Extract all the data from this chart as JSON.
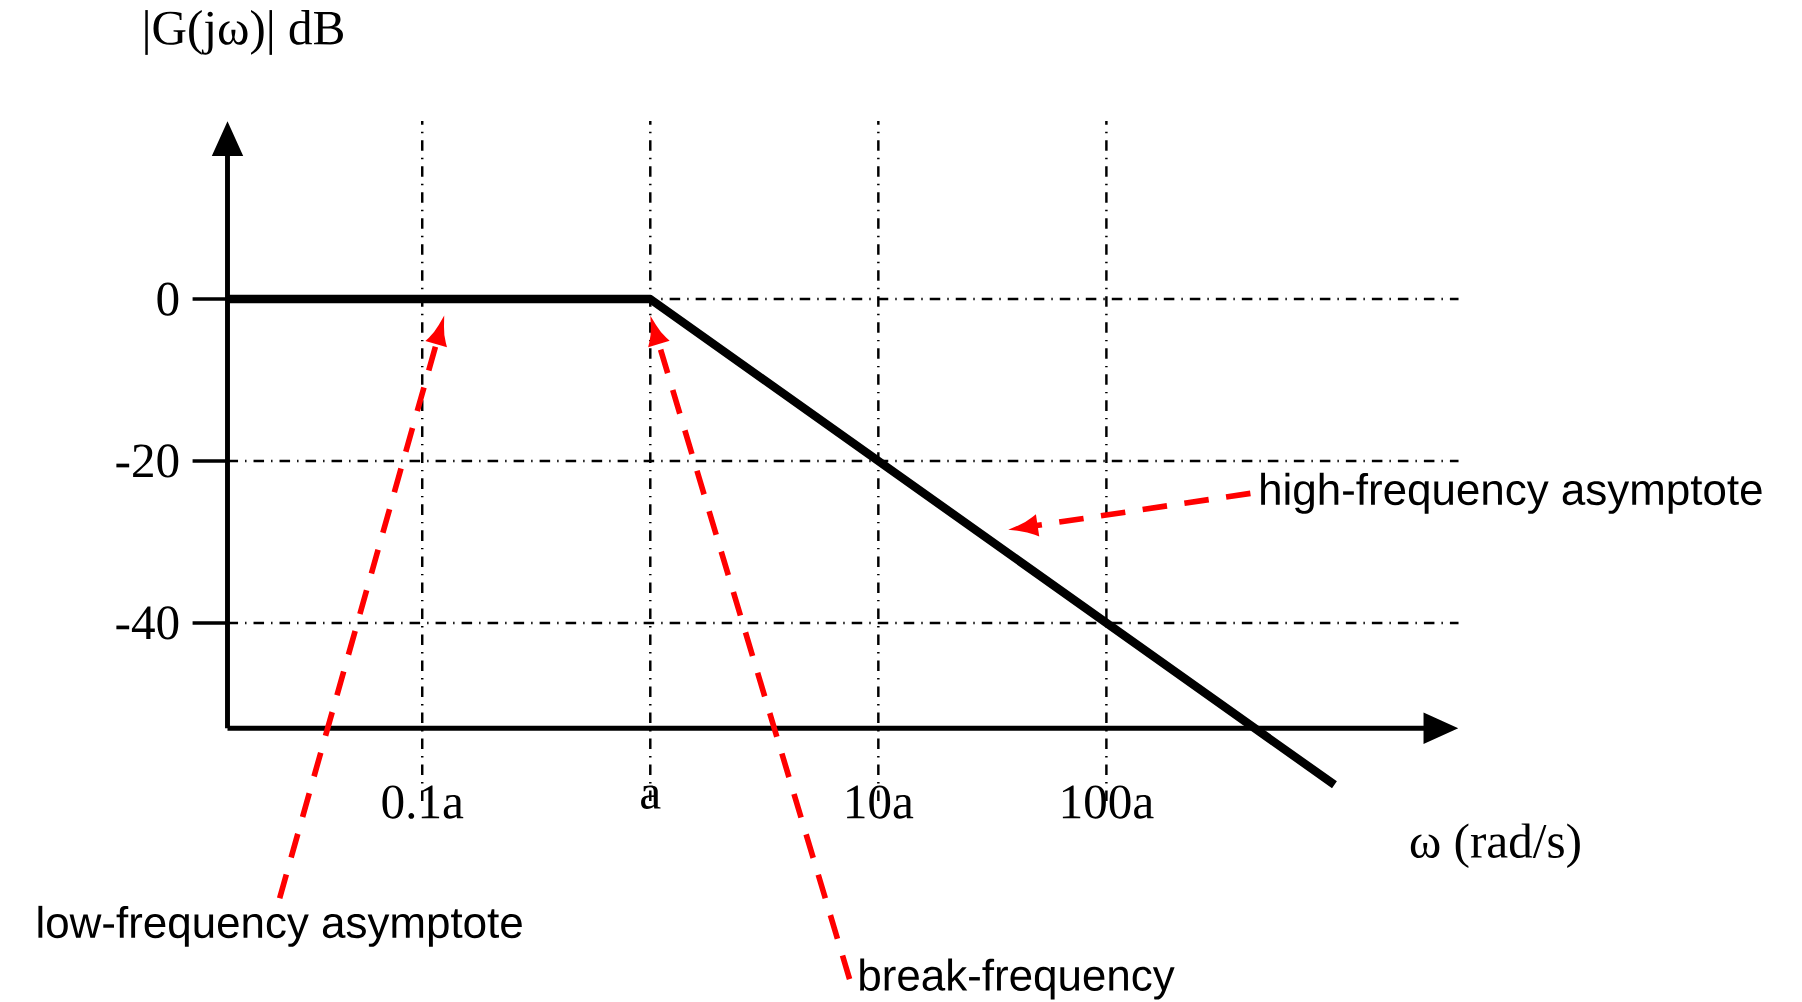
{
  "chart_data": {
    "type": "line",
    "xlabel": "ω (rad/s)",
    "ylabel": "|G(jω)| dB",
    "x": [
      0.014,
      1,
      1000
    ],
    "series": [
      {
        "color": "#000000",
        "values": [
          0,
          0,
          -60
        ]
      }
    ],
    "log": "x",
    "grid": true,
    "xlim": [
      0.014,
      3500
    ],
    "ylim": [
      -62,
      22
    ],
    "xticks": [
      {
        "value": 0.1,
        "label": "0.1a"
      },
      {
        "value": 1,
        "label": "a"
      },
      {
        "value": 10,
        "label": "10a"
      },
      {
        "value": 100,
        "label": "100a"
      }
    ],
    "yticks": [
      0,
      -20,
      -40
    ],
    "annotations": [
      "low-frequency asymptote",
      "break-frequency",
      "high-frequency asymptote"
    ]
  }
}
